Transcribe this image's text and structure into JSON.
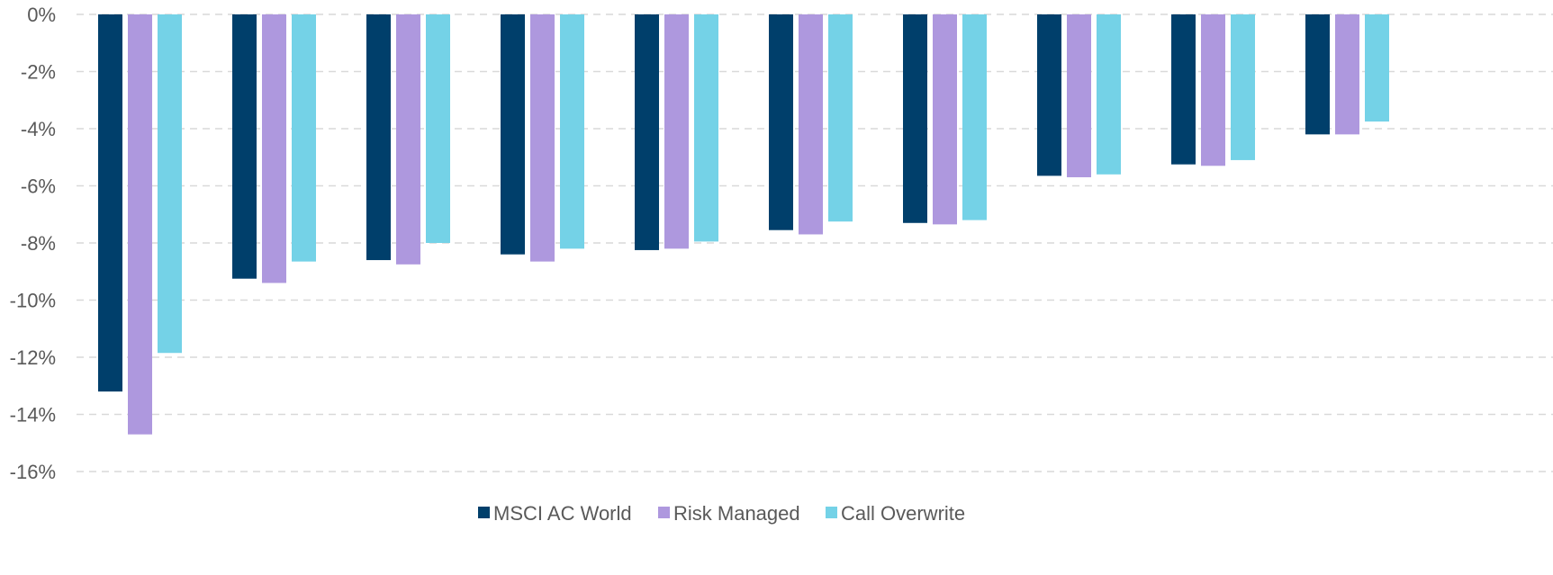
{
  "chart_data": {
    "type": "bar",
    "title": "",
    "xlabel": "",
    "ylabel": "",
    "categories": [
      "",
      "",
      "",
      "",
      "",
      "",
      "",
      "",
      "",
      ""
    ],
    "ylim": [
      -16,
      0
    ],
    "yticks": [
      0,
      -2,
      -4,
      -6,
      -8,
      -10,
      -12,
      -14,
      -16
    ],
    "ytick_labels": [
      "0%",
      "-2%",
      "-4%",
      "-6%",
      "-8%",
      "-10%",
      "-12%",
      "-14%",
      "-16%"
    ],
    "grid": true,
    "legend_position": "bottom-center",
    "series": [
      {
        "name": "MSCI AC World",
        "color": "#003f6b",
        "values": [
          -13.2,
          -9.25,
          -8.6,
          -8.4,
          -8.25,
          -7.55,
          -7.3,
          -5.65,
          -5.25,
          -4.2
        ]
      },
      {
        "name": "Risk Managed",
        "color": "#ae98de",
        "values": [
          -14.7,
          -9.4,
          -8.75,
          -8.65,
          -8.2,
          -7.7,
          -7.35,
          -5.7,
          -5.3,
          -4.2
        ]
      },
      {
        "name": "Call Overwrite",
        "color": "#74d2e7",
        "values": [
          -11.85,
          -8.65,
          -8.0,
          -8.2,
          -7.95,
          -7.25,
          -7.2,
          -5.6,
          -5.1,
          -3.75
        ]
      }
    ]
  }
}
